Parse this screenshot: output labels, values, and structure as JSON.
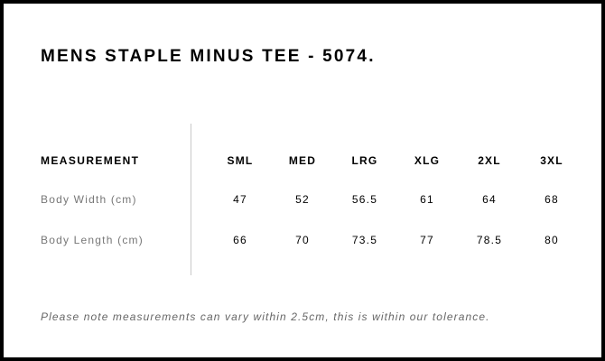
{
  "title": "MENS STAPLE MINUS TEE - 5074.",
  "table": {
    "header_label": "MEASUREMENT",
    "sizes": [
      "SML",
      "MED",
      "LRG",
      "XLG",
      "2XL",
      "3XL"
    ],
    "rows": [
      {
        "label": "Body Width (cm)",
        "values": [
          "47",
          "52",
          "56.5",
          "61",
          "64",
          "68"
        ]
      },
      {
        "label": "Body Length (cm)",
        "values": [
          "66",
          "70",
          "73.5",
          "77",
          "78.5",
          "80"
        ]
      }
    ]
  },
  "note": "Please note measurements can vary within 2.5cm, this is within our tolerance."
}
